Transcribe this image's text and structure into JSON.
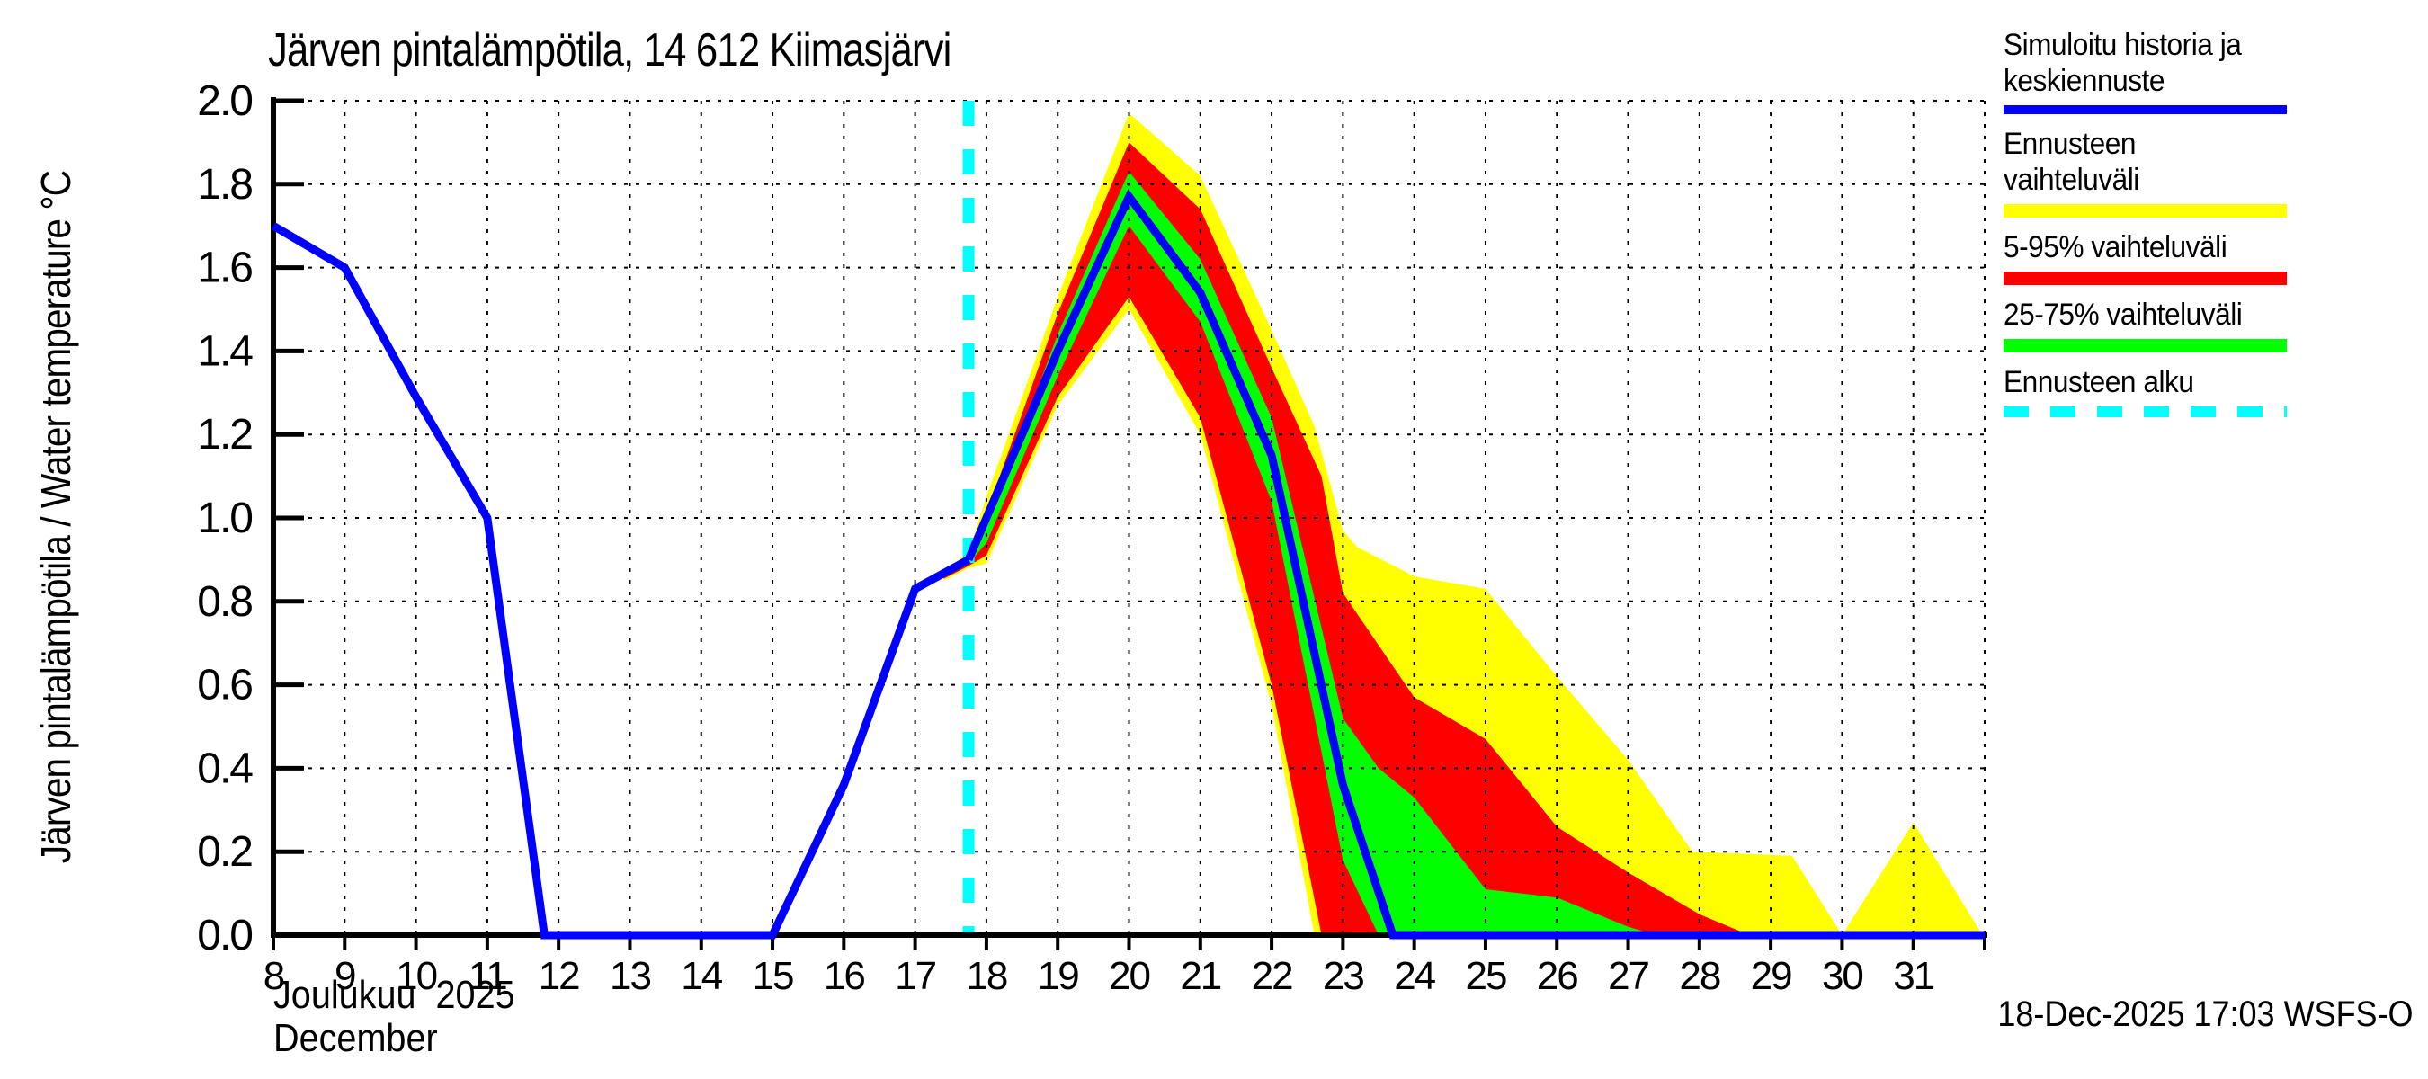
{
  "title": "Järven pintalämpötila, 14 612 Kiimasjärvi",
  "y_axis_label": "Järven pintalämpötila / Water temperature °C",
  "x_axis": {
    "month_fi": "Joulukuu  2025",
    "month_en": "December"
  },
  "footer": {
    "timestamp": "18-Dec-2025 17:03 WSFS-O"
  },
  "legend": {
    "items": [
      {
        "label": "Simuloitu historia ja keskiennuste",
        "color": "#0000ff",
        "style": "solid"
      },
      {
        "label": "Ennusteen vaihteluväli",
        "color": "#ffff00",
        "style": "solid"
      },
      {
        "label": "5-95% vaihteluväli",
        "color": "#ff0000",
        "style": "solid"
      },
      {
        "label": "25-75% vaihteluväli",
        "color": "#00ff00",
        "style": "solid"
      },
      {
        "label": "Ennusteen alku",
        "color": "#00ffff",
        "style": "dashed"
      }
    ]
  },
  "colors": {
    "history_and_median": "#0000ff",
    "band_minmax": "#ffff00",
    "band_5_95": "#ff0000",
    "band_25_75": "#00ff00",
    "forecast_start": "#00ffff",
    "grid": "#000000",
    "background": "#ffffff"
  },
  "chart_data": {
    "type": "line",
    "title": "Järven pintalämpötila, 14 612 Kiimasjärvi",
    "xlabel": "Joulukuu 2025 / December (day of month)",
    "ylabel": "Järven pintalämpötila / Water temperature °C",
    "xlim": [
      8,
      32
    ],
    "ylim": [
      0,
      2
    ],
    "grid": true,
    "x_tick_days": [
      8,
      9,
      10,
      11,
      12,
      13,
      14,
      15,
      16,
      17,
      18,
      19,
      20,
      21,
      22,
      23,
      24,
      25,
      26,
      27,
      28,
      29,
      30,
      31,
      32
    ],
    "x_tick_labels": [
      "8",
      "9",
      "10",
      "11",
      "12",
      "13",
      "14",
      "15",
      "16",
      "17",
      "18",
      "19",
      "20",
      "21",
      "22",
      "23",
      "24",
      "25",
      "26",
      "27",
      "28",
      "29",
      "30",
      "31",
      ""
    ],
    "y_ticks": [
      0,
      0.2,
      0.4,
      0.6,
      0.8,
      1.0,
      1.2,
      1.4,
      1.6,
      1.8,
      2.0
    ],
    "y_tick_labels": [
      "0.0",
      "0.2",
      "0.4",
      "0.6",
      "0.8",
      "1.0",
      "1.2",
      "1.4",
      "1.6",
      "1.8",
      "2.0"
    ],
    "forecast_start_day": 17.75,
    "series": [
      {
        "name": "Simuloitu historia (simulated history)",
        "color": "#0000ff",
        "x": [
          8,
          9,
          10,
          11,
          11.8,
          15,
          16,
          17,
          17.75
        ],
        "y": [
          1.7,
          1.6,
          1.29,
          1.0,
          0.0,
          0.0,
          0.36,
          0.83,
          0.9
        ]
      },
      {
        "name": "Keskiennuste (median forecast)",
        "color": "#0000ff",
        "x": [
          17.75,
          18,
          19,
          20,
          21,
          22,
          23,
          23.7,
          24,
          32
        ],
        "y": [
          0.9,
          1.0,
          1.4,
          1.77,
          1.54,
          1.15,
          0.36,
          0.0,
          0.0,
          0.0
        ]
      }
    ],
    "bands": [
      {
        "name": "Ennusteen vaihteluväli (min-max)",
        "color": "#ffff00",
        "x": [
          17.4,
          17.75,
          18,
          19,
          20,
          21,
          22,
          22.6,
          23,
          23.2,
          24,
          25,
          26,
          27,
          27.9,
          29.3,
          30,
          31,
          31.97
        ],
        "upper": [
          0.87,
          0.92,
          1.05,
          1.53,
          1.97,
          1.82,
          1.45,
          1.22,
          0.97,
          0.93,
          0.86,
          0.83,
          0.62,
          0.42,
          0.2,
          0.19,
          0.0,
          0.27,
          0.0
        ],
        "lower": [
          0.85,
          0.88,
          0.89,
          1.27,
          1.5,
          1.2,
          0.55,
          0.0,
          0.0,
          0.0,
          0.0,
          0.0,
          0.0,
          0.0,
          0.0,
          0.0,
          0.0,
          0.0,
          0.0
        ]
      },
      {
        "name": "5-95% vaihteluväli",
        "color": "#ff0000",
        "x": [
          17.4,
          17.75,
          18,
          19,
          20,
          21,
          22,
          22.7,
          23,
          24,
          25,
          26,
          27,
          28,
          28.7,
          32
        ],
        "upper": [
          0.866,
          0.91,
          1.01,
          1.49,
          1.9,
          1.74,
          1.36,
          1.1,
          0.82,
          0.57,
          0.47,
          0.26,
          0.15,
          0.05,
          0.0,
          0.0
        ],
        "lower": [
          0.854,
          0.885,
          0.91,
          1.29,
          1.53,
          1.24,
          0.6,
          0.0,
          0.0,
          0.0,
          0.0,
          0.0,
          0.0,
          0.0,
          0.0,
          0.0
        ]
      },
      {
        "name": "25-75% vaihteluväli",
        "color": "#00ff00",
        "x": [
          17.4,
          17.75,
          18,
          19,
          20,
          21,
          22,
          23,
          23.5,
          24,
          25,
          26,
          27,
          27.4,
          32
        ],
        "upper": [
          0.863,
          0.905,
          0.98,
          1.44,
          1.83,
          1.62,
          1.24,
          0.52,
          0.4,
          0.33,
          0.11,
          0.09,
          0.02,
          0.0,
          0.0
        ],
        "lower": [
          0.857,
          0.89,
          0.94,
          1.34,
          1.7,
          1.47,
          1.04,
          0.18,
          0.0,
          0.0,
          0.0,
          0.0,
          0.0,
          0.0,
          0.0
        ]
      }
    ]
  }
}
